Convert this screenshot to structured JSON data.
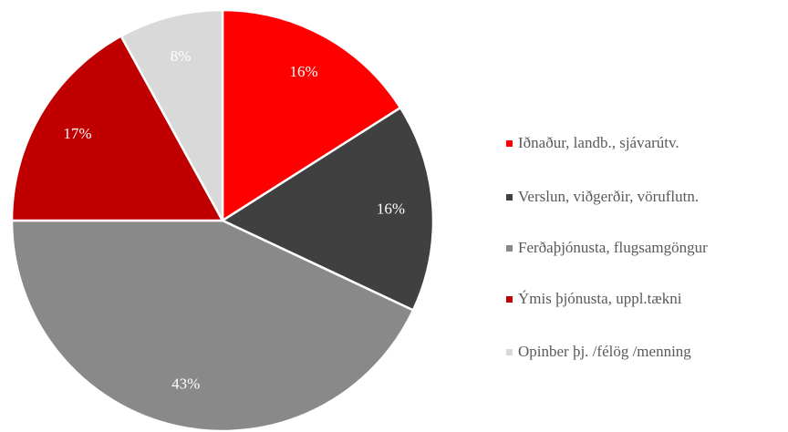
{
  "chart_data": {
    "type": "pie",
    "categories": [
      "Iðnaður, landb., sjávarútv.",
      "Verslun, viðgerðir, vöruflutn.",
      "Ferðaþjónusta, flugsamgöngur",
      "Ýmis þjónusta, uppl.tækni",
      "Opinber þj. /félög /menning"
    ],
    "values": [
      16,
      16,
      43,
      17,
      8
    ],
    "value_labels": [
      "16%",
      "16%",
      "43%",
      "17%",
      "8%"
    ],
    "colors": [
      "#ff0000",
      "#404040",
      "#898989",
      "#c00000",
      "#d9d9d9"
    ],
    "legend": "right"
  }
}
